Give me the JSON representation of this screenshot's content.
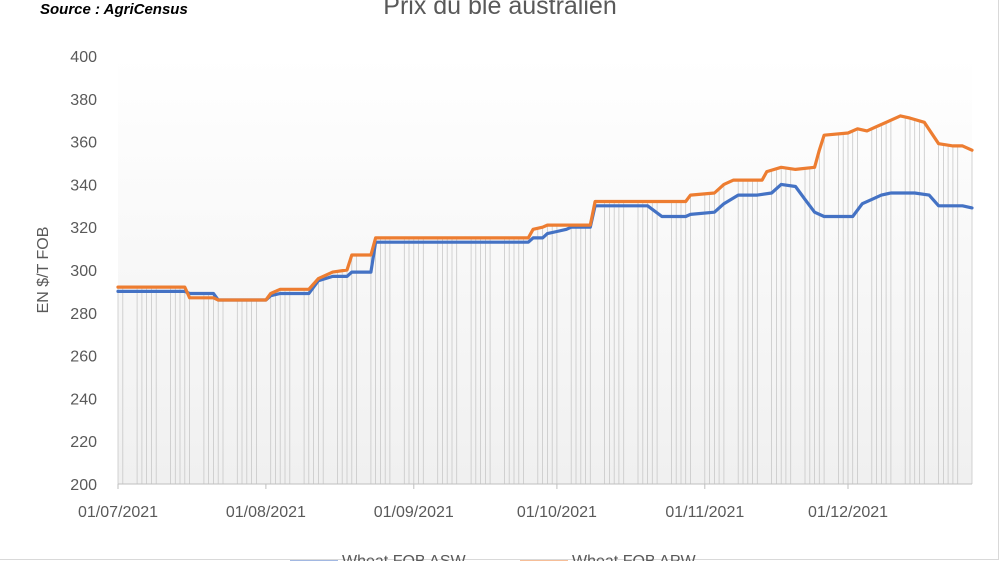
{
  "source": "Source : AgriCensus",
  "chart_data": {
    "type": "line",
    "title": "Prix du blé australien",
    "xlabel": "",
    "ylabel": "EN $/T FOB",
    "ylim": [
      200,
      400
    ],
    "y_ticks": [
      "200",
      "220",
      "240",
      "260",
      "280",
      "300",
      "320",
      "340",
      "360",
      "380",
      "400"
    ],
    "x_tick_labels": [
      "01/07/2021",
      "01/08/2021",
      "01/09/2021",
      "01/10/2021",
      "01/11/2021",
      "01/12/2021"
    ],
    "x_range": [
      "2021-07-01",
      "2021-12-27"
    ],
    "grid": "vertical drop lines",
    "legend_position": "bottom",
    "series": [
      {
        "name": "Wheat FOB ASW",
        "color": "#4472c4",
        "points": [
          [
            "2021-07-01",
            290
          ],
          [
            "2021-07-15",
            290
          ],
          [
            "2021-07-16",
            289
          ],
          [
            "2021-07-21",
            289
          ],
          [
            "2021-07-22",
            286
          ],
          [
            "2021-08-01",
            286
          ],
          [
            "2021-08-02",
            288
          ],
          [
            "2021-08-04",
            289
          ],
          [
            "2021-08-10",
            289
          ],
          [
            "2021-08-12",
            295
          ],
          [
            "2021-08-15",
            297
          ],
          [
            "2021-08-18",
            297
          ],
          [
            "2021-08-19",
            299
          ],
          [
            "2021-08-23",
            299
          ],
          [
            "2021-08-24",
            313
          ],
          [
            "2021-09-25",
            313
          ],
          [
            "2021-09-26",
            315
          ],
          [
            "2021-09-28",
            315
          ],
          [
            "2021-09-29",
            317
          ],
          [
            "2021-10-01",
            318
          ],
          [
            "2021-10-03",
            319
          ],
          [
            "2021-10-04",
            320
          ],
          [
            "2021-10-08",
            320
          ],
          [
            "2021-10-09",
            330
          ],
          [
            "2021-10-20",
            330
          ],
          [
            "2021-10-23",
            325
          ],
          [
            "2021-10-28",
            325
          ],
          [
            "2021-10-29",
            326
          ],
          [
            "2021-11-03",
            327
          ],
          [
            "2021-11-05",
            331
          ],
          [
            "2021-11-08",
            335
          ],
          [
            "2021-11-12",
            335
          ],
          [
            "2021-11-15",
            336
          ],
          [
            "2021-11-17",
            340
          ],
          [
            "2021-11-20",
            339
          ],
          [
            "2021-11-22",
            333
          ],
          [
            "2021-11-24",
            327
          ],
          [
            "2021-11-26",
            325
          ],
          [
            "2021-12-02",
            325
          ],
          [
            "2021-12-04",
            331
          ],
          [
            "2021-12-06",
            333
          ],
          [
            "2021-12-08",
            335
          ],
          [
            "2021-12-10",
            336
          ],
          [
            "2021-12-15",
            336
          ],
          [
            "2021-12-18",
            335
          ],
          [
            "2021-12-20",
            330
          ],
          [
            "2021-12-25",
            330
          ],
          [
            "2021-12-27",
            329
          ]
        ]
      },
      {
        "name": "Wheat FOB APW",
        "color": "#ed7d31",
        "points": [
          [
            "2021-07-01",
            292
          ],
          [
            "2021-07-15",
            292
          ],
          [
            "2021-07-16",
            287
          ],
          [
            "2021-07-21",
            287
          ],
          [
            "2021-07-22",
            286
          ],
          [
            "2021-08-01",
            286
          ],
          [
            "2021-08-02",
            289
          ],
          [
            "2021-08-04",
            291
          ],
          [
            "2021-08-10",
            291
          ],
          [
            "2021-08-12",
            296
          ],
          [
            "2021-08-15",
            299
          ],
          [
            "2021-08-18",
            300
          ],
          [
            "2021-08-19",
            307
          ],
          [
            "2021-08-23",
            307
          ],
          [
            "2021-08-24",
            315
          ],
          [
            "2021-09-25",
            315
          ],
          [
            "2021-09-26",
            319
          ],
          [
            "2021-09-28",
            320
          ],
          [
            "2021-09-29",
            321
          ],
          [
            "2021-10-08",
            321
          ],
          [
            "2021-10-09",
            332
          ],
          [
            "2021-10-23",
            332
          ],
          [
            "2021-10-28",
            332
          ],
          [
            "2021-10-29",
            335
          ],
          [
            "2021-11-03",
            336
          ],
          [
            "2021-11-05",
            340
          ],
          [
            "2021-11-07",
            342
          ],
          [
            "2021-11-13",
            342
          ],
          [
            "2021-11-14",
            346
          ],
          [
            "2021-11-17",
            348
          ],
          [
            "2021-11-20",
            347
          ],
          [
            "2021-11-24",
            348
          ],
          [
            "2021-11-25",
            356
          ],
          [
            "2021-11-26",
            363
          ],
          [
            "2021-12-01",
            364
          ],
          [
            "2021-12-03",
            366
          ],
          [
            "2021-12-05",
            365
          ],
          [
            "2021-12-07",
            367
          ],
          [
            "2021-12-10",
            370
          ],
          [
            "2021-12-12",
            372
          ],
          [
            "2021-12-14",
            371
          ],
          [
            "2021-12-17",
            369
          ],
          [
            "2021-12-20",
            359
          ],
          [
            "2021-12-23",
            358
          ],
          [
            "2021-12-25",
            358
          ],
          [
            "2021-12-27",
            356
          ]
        ]
      }
    ]
  }
}
